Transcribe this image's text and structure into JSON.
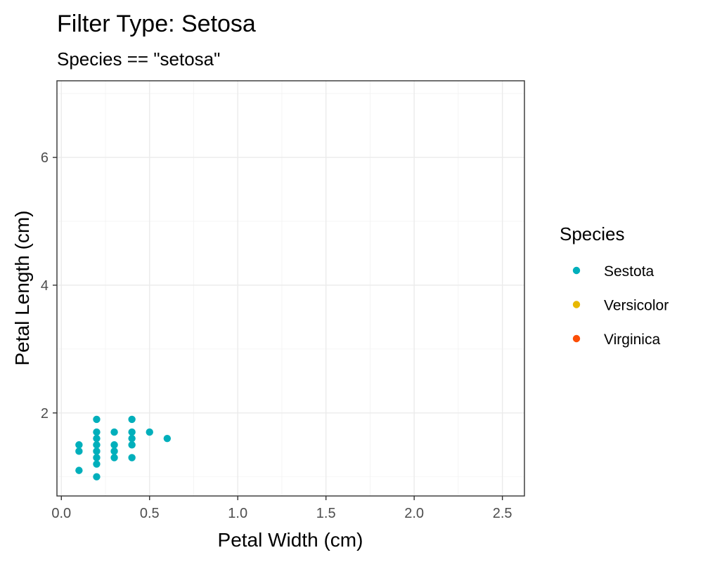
{
  "chart_data": {
    "type": "scatter",
    "title": "Filter Type: Setosa",
    "subtitle": "Species == \"setosa\"",
    "xlabel": "Petal Width (cm)",
    "ylabel": "Petal Length (cm)",
    "xlim": [
      -0.025,
      2.625
    ],
    "ylim": [
      0.7,
      7.2
    ],
    "x_ticks": [
      0.0,
      0.5,
      1.0,
      1.5,
      2.0,
      2.5
    ],
    "x_tick_labels": [
      "0.0",
      "0.5",
      "1.0",
      "1.5",
      "2.0",
      "2.5"
    ],
    "y_ticks": [
      2,
      4,
      6
    ],
    "y_tick_labels": [
      "2",
      "4",
      "6"
    ],
    "x_minor_ticks": [
      0.25,
      0.75,
      1.25,
      1.75,
      2.25
    ],
    "y_minor_ticks": [
      1,
      3,
      5,
      7
    ],
    "grid": true,
    "legend": {
      "title": "Species",
      "placement": "right",
      "entries": [
        {
          "label": "Sestota",
          "color": "#00AFBB"
        },
        {
          "label": "Versicolor",
          "color": "#E7B800"
        },
        {
          "label": "Virginica",
          "color": "#FC4E07"
        }
      ]
    },
    "series": [
      {
        "name": "Sestota",
        "color": "#00AFBB",
        "points": [
          {
            "x": 0.1,
            "y": 1.1
          },
          {
            "x": 0.1,
            "y": 1.4
          },
          {
            "x": 0.1,
            "y": 1.5
          },
          {
            "x": 0.2,
            "y": 1.0
          },
          {
            "x": 0.2,
            "y": 1.2
          },
          {
            "x": 0.2,
            "y": 1.3
          },
          {
            "x": 0.2,
            "y": 1.4
          },
          {
            "x": 0.2,
            "y": 1.5
          },
          {
            "x": 0.2,
            "y": 1.6
          },
          {
            "x": 0.2,
            "y": 1.7
          },
          {
            "x": 0.2,
            "y": 1.9
          },
          {
            "x": 0.3,
            "y": 1.3
          },
          {
            "x": 0.3,
            "y": 1.4
          },
          {
            "x": 0.3,
            "y": 1.5
          },
          {
            "x": 0.3,
            "y": 1.7
          },
          {
            "x": 0.4,
            "y": 1.3
          },
          {
            "x": 0.4,
            "y": 1.5
          },
          {
            "x": 0.4,
            "y": 1.6
          },
          {
            "x": 0.4,
            "y": 1.7
          },
          {
            "x": 0.4,
            "y": 1.9
          },
          {
            "x": 0.5,
            "y": 1.7
          },
          {
            "x": 0.6,
            "y": 1.6
          }
        ]
      },
      {
        "name": "Versicolor",
        "color": "#E7B800",
        "points": []
      },
      {
        "name": "Virginica",
        "color": "#FC4E07",
        "points": []
      }
    ]
  }
}
